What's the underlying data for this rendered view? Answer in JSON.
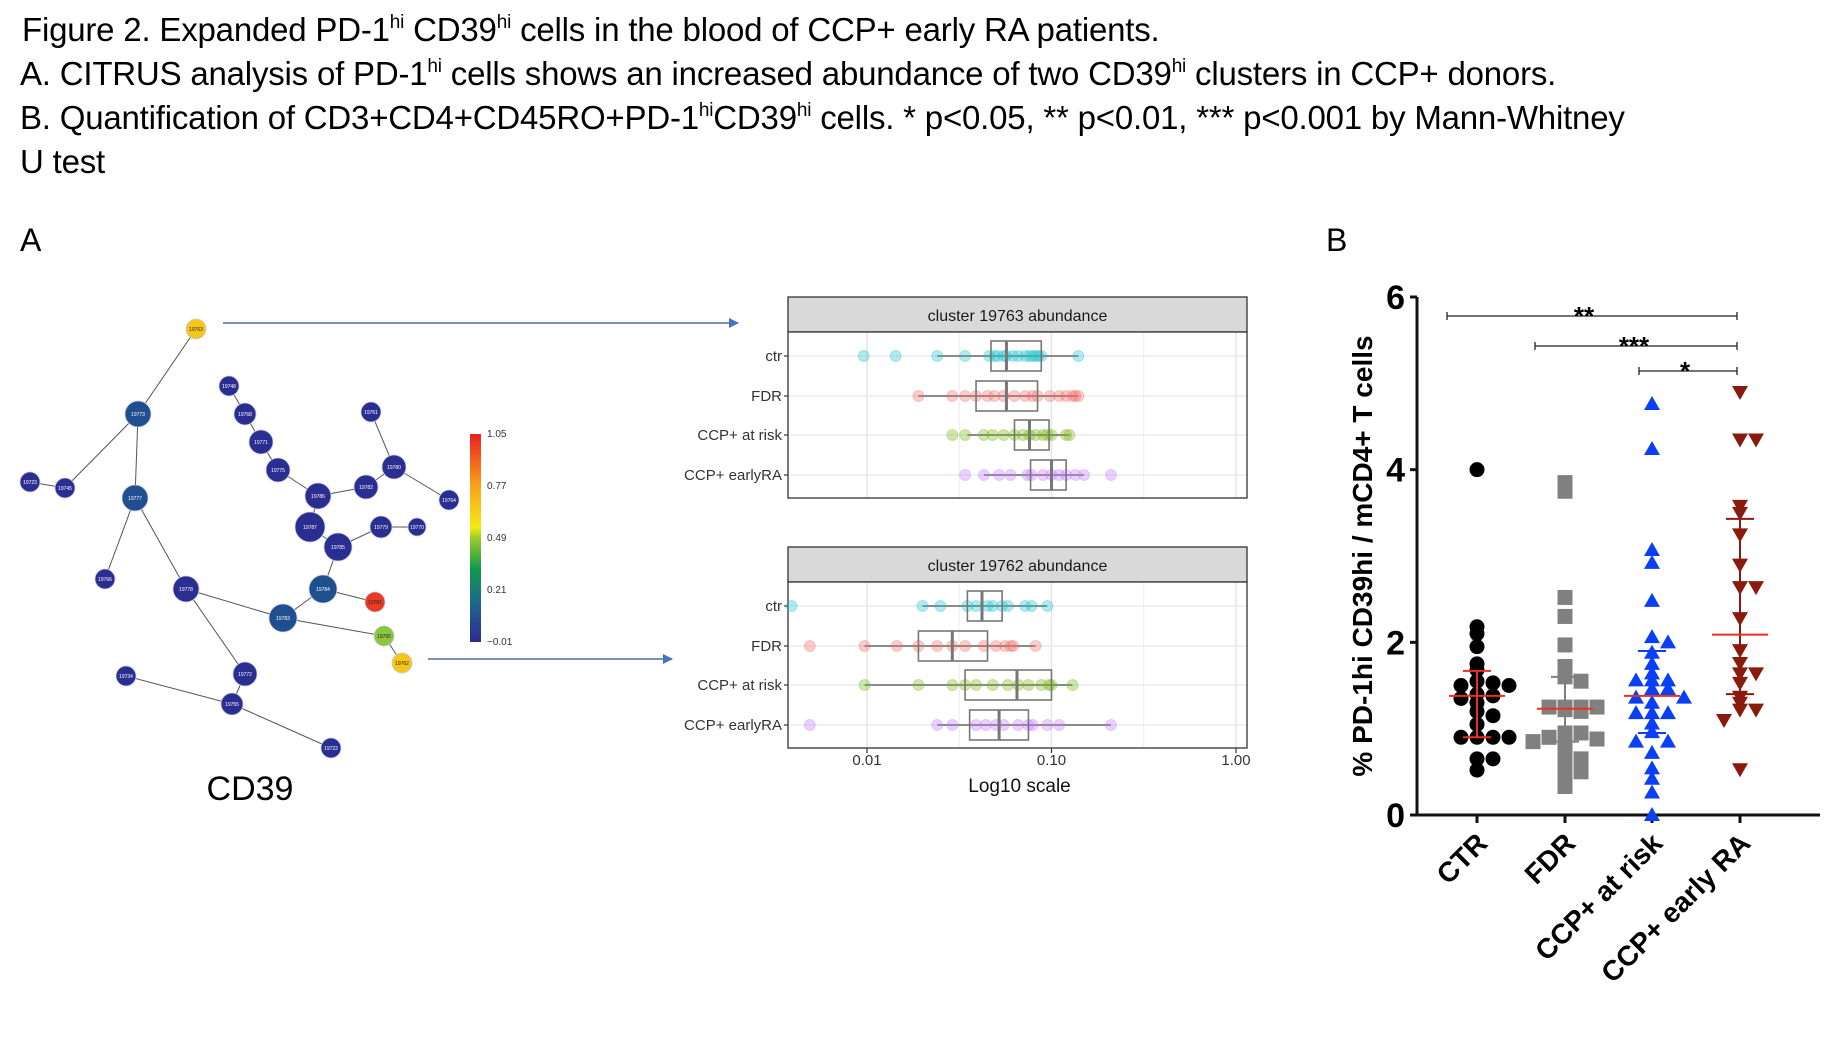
{
  "caption": {
    "line1": {
      "pre": "Figure 2. Expanded PD-1",
      "sup1": "hi",
      "mid": " CD39",
      "sup2": "hi",
      "post": " cells in the blood of CCP+ early RA patients."
    },
    "line2": {
      "pre": "A. CITRUS analysis of PD-1",
      "sup1": "hi",
      "mid": " cells shows an increased abundance of two CD39",
      "sup2": "hi",
      "post": " clusters in CCP+ donors."
    },
    "line3": {
      "pre": "B. Quantification of CD3+CD4+CD45RO+PD-1",
      "sup1": "hi",
      "mid": "CD39",
      "sup2": "hi",
      "post": " cells. * p<0.05, ** p<0.01, *** p<0.001 by Mann-Whitney"
    },
    "line4": "U test"
  },
  "panel_labels": {
    "a": "A",
    "b": "B"
  },
  "network": {
    "marker_label": "CD39",
    "colorbar": {
      "ticks": [
        "1.05",
        "0.77",
        "0.49",
        "0.21",
        "−0.01"
      ],
      "min": -0.01,
      "max": 1.05
    },
    "nodes": [
      {
        "id": "19763",
        "value": 0.55
      },
      {
        "id": "19773",
        "value": 0.12
      },
      {
        "id": "19723",
        "value": 0.0
      },
      {
        "id": "19745",
        "value": 0.0
      },
      {
        "id": "19777",
        "value": 0.12
      },
      {
        "id": "19766",
        "value": 0.0
      },
      {
        "id": "19778",
        "value": 0.0
      },
      {
        "id": "19734",
        "value": 0.0
      },
      {
        "id": "19772",
        "value": 0.02
      },
      {
        "id": "19755",
        "value": 0.0
      },
      {
        "id": "19722",
        "value": 0.0
      },
      {
        "id": "19783",
        "value": 0.12
      },
      {
        "id": "19784",
        "value": 0.12
      },
      {
        "id": "19781",
        "value": 1.0
      },
      {
        "id": "19765",
        "value": 0.4
      },
      {
        "id": "19762",
        "value": 0.58
      },
      {
        "id": "19748",
        "value": 0.0
      },
      {
        "id": "19768",
        "value": 0.0
      },
      {
        "id": "19771",
        "value": 0.0
      },
      {
        "id": "19775",
        "value": 0.0
      },
      {
        "id": "19786",
        "value": 0.0
      },
      {
        "id": "19787",
        "value": 0.0
      },
      {
        "id": "19785",
        "value": 0.0
      },
      {
        "id": "19782",
        "value": 0.0
      },
      {
        "id": "19780",
        "value": 0.0
      },
      {
        "id": "19761",
        "value": 0.0
      },
      {
        "id": "19764",
        "value": 0.0
      },
      {
        "id": "19779",
        "value": 0.0
      },
      {
        "id": "19770",
        "value": 0.0
      }
    ],
    "edges": [
      [
        "19773",
        "19763"
      ],
      [
        "19773",
        "19745"
      ],
      [
        "19745",
        "19723"
      ],
      [
        "19773",
        "19777"
      ],
      [
        "19777",
        "19766"
      ],
      [
        "19777",
        "19778"
      ],
      [
        "19778",
        "19783"
      ],
      [
        "19778",
        "19772"
      ],
      [
        "19772",
        "19755"
      ],
      [
        "19755",
        "19734"
      ],
      [
        "19755",
        "19722"
      ],
      [
        "19783",
        "19784"
      ],
      [
        "19783",
        "19765"
      ],
      [
        "19765",
        "19762"
      ],
      [
        "19784",
        "19781"
      ],
      [
        "19784",
        "19785"
      ],
      [
        "19785",
        "19787"
      ],
      [
        "19787",
        "19786"
      ],
      [
        "19786",
        "19775"
      ],
      [
        "19775",
        "19771"
      ],
      [
        "19771",
        "19768"
      ],
      [
        "19768",
        "19748"
      ],
      [
        "19786",
        "19782"
      ],
      [
        "19782",
        "19780"
      ],
      [
        "19780",
        "19761"
      ],
      [
        "19780",
        "19764"
      ],
      [
        "19785",
        "19779"
      ],
      [
        "19779",
        "19770"
      ]
    ]
  },
  "chart_data": [
    {
      "type": "box",
      "title": "cluster 19763 abundance",
      "xlabel": "Log10 scale",
      "xscale": "log10",
      "xlim": [
        0.0037,
        1.15
      ],
      "xticks": [
        0.01,
        0.1,
        1.0
      ],
      "xtick_labels": [
        "0.01",
        "0.10",
        "1.00"
      ],
      "categories": [
        "ctr",
        "FDR",
        "CCP+ at risk",
        "CCP+ earlyRA"
      ],
      "colors": [
        "#22c3cc",
        "#f0706a",
        "#7cb518",
        "#c77cff"
      ],
      "series": [
        {
          "name": "ctr",
          "points": [
            0.0096,
            0.0143,
            0.024,
            0.034,
            0.046,
            0.049,
            0.051,
            0.055,
            0.057,
            0.062,
            0.066,
            0.072,
            0.076,
            0.079,
            0.082,
            0.085,
            0.088,
            0.14
          ],
          "q1": 0.047,
          "median": 0.057,
          "q3": 0.088,
          "whisker_low": 0.024,
          "whisker_high": 0.14
        },
        {
          "name": "FDR",
          "points": [
            0.019,
            0.029,
            0.034,
            0.039,
            0.045,
            0.049,
            0.055,
            0.063,
            0.072,
            0.079,
            0.084,
            0.098,
            0.11,
            0.12,
            0.13,
            0.135,
            0.14
          ],
          "q1": 0.039,
          "median": 0.057,
          "q3": 0.084,
          "whisker_low": 0.019,
          "whisker_high": 0.14
        },
        {
          "name": "CCP+ at risk",
          "points": [
            0.029,
            0.034,
            0.043,
            0.048,
            0.055,
            0.063,
            0.07,
            0.076,
            0.082,
            0.09,
            0.095,
            0.1,
            0.12,
            0.125
          ],
          "q1": 0.063,
          "median": 0.076,
          "q3": 0.097,
          "whisker_low": 0.035,
          "whisker_high": 0.125
        },
        {
          "name": "CCP+ earlyRA",
          "points": [
            0.034,
            0.043,
            0.052,
            0.06,
            0.074,
            0.078,
            0.09,
            0.1,
            0.11,
            0.12,
            0.135,
            0.15,
            0.21
          ],
          "q1": 0.077,
          "median": 0.1,
          "q3": 0.12,
          "whisker_low": 0.043,
          "whisker_high": 0.15
        }
      ]
    },
    {
      "type": "box",
      "title": "cluster 19762 abundance",
      "xlabel": "Log10 scale",
      "xscale": "log10",
      "xlim": [
        0.0037,
        1.15
      ],
      "xticks": [
        0.01,
        0.1,
        1.0
      ],
      "xtick_labels": [
        "0.01",
        "0.10",
        "1.00"
      ],
      "categories": [
        "ctr",
        "FDR",
        "CCP+ at risk",
        "CCP+ earlyRA"
      ],
      "colors": [
        "#22c3cc",
        "#f0706a",
        "#7cb518",
        "#c77cff"
      ],
      "series": [
        {
          "name": "ctr",
          "points": [
            0.0039,
            0.02,
            0.025,
            0.035,
            0.039,
            0.045,
            0.048,
            0.054,
            0.058,
            0.072,
            0.078,
            0.095
          ],
          "q1": 0.035,
          "median": 0.042,
          "q3": 0.054,
          "whisker_low": 0.02,
          "whisker_high": 0.095
        },
        {
          "name": "FDR",
          "points": [
            0.0049,
            0.0097,
            0.0145,
            0.019,
            0.024,
            0.029,
            0.034,
            0.043,
            0.05,
            0.056,
            0.06,
            0.062,
            0.082
          ],
          "q1": 0.019,
          "median": 0.029,
          "q3": 0.045,
          "whisker_low": 0.0097,
          "whisker_high": 0.082
        },
        {
          "name": "CCP+ at risk",
          "points": [
            0.0097,
            0.019,
            0.029,
            0.034,
            0.039,
            0.048,
            0.058,
            0.066,
            0.075,
            0.088,
            0.097,
            0.1,
            0.13
          ],
          "q1": 0.034,
          "median": 0.065,
          "q3": 0.1,
          "whisker_low": 0.0097,
          "whisker_high": 0.13
        },
        {
          "name": "CCP+ earlyRA",
          "points": [
            0.0049,
            0.024,
            0.029,
            0.039,
            0.044,
            0.05,
            0.055,
            0.066,
            0.075,
            0.079,
            0.095,
            0.11,
            0.21
          ],
          "q1": 0.036,
          "median": 0.052,
          "q3": 0.075,
          "whisker_low": 0.024,
          "whisker_high": 0.21
        }
      ]
    },
    {
      "type": "scatter",
      "title": "",
      "ylabel": "% PD-1hi CD39hi / mCD4+ T cells",
      "ylim": [
        0,
        6
      ],
      "yticks": [
        0,
        2,
        4,
        6
      ],
      "categories": [
        "CTR",
        "FDR",
        "CCP+ at risk",
        "CCP+ early RA"
      ],
      "series": [
        {
          "name": "CTR",
          "marker": "circle",
          "color": "#000000",
          "values": [
            4.0,
            2.18,
            2.1,
            1.95,
            1.75,
            1.68,
            1.55,
            1.53,
            1.5,
            1.5,
            1.4,
            1.38,
            1.35,
            1.3,
            1.2,
            1.15,
            1.05,
            0.9,
            0.9,
            0.9,
            0.9,
            0.65,
            0.65,
            0.52
          ],
          "median": 1.38,
          "q1": 0.9,
          "q3": 1.67
        },
        {
          "name": "FDR",
          "marker": "square",
          "color": "#808080",
          "values": [
            3.85,
            3.75,
            2.52,
            2.3,
            1.97,
            1.72,
            1.6,
            1.55,
            1.25,
            1.25,
            1.25,
            1.25,
            1.22,
            1.2,
            0.95,
            0.95,
            0.9,
            0.88,
            0.85,
            0.8,
            0.7,
            0.65,
            0.55,
            0.5,
            0.45,
            0.33
          ],
          "median": 1.23,
          "q1": 0.85,
          "q3": 1.6
        },
        {
          "name": "CCP+ at risk",
          "marker": "triangle-up",
          "color": "#0b3ff5",
          "values": [
            4.76,
            4.24,
            3.07,
            2.92,
            2.48,
            2.06,
            2.0,
            1.88,
            1.75,
            1.64,
            1.56,
            1.56,
            1.56,
            1.46,
            1.46,
            1.36,
            1.36,
            1.3,
            1.18,
            1.18,
            1.18,
            1.06,
            0.96,
            0.85,
            0.85,
            0.72,
            0.54,
            0.42,
            0.26,
            0.0
          ],
          "median": 1.38,
          "q1": 0.95,
          "q3": 1.9
        },
        {
          "name": "CCP+ early RA",
          "marker": "triangle-down",
          "color": "#8b1a0e",
          "values": [
            4.9,
            4.35,
            4.35,
            3.58,
            3.5,
            3.25,
            2.9,
            2.64,
            2.64,
            2.28,
            1.91,
            1.76,
            1.64,
            1.64,
            1.53,
            1.37,
            1.3,
            1.22,
            1.22,
            1.1,
            0.53
          ],
          "median": 2.09,
          "q1": 1.4,
          "q3": 3.43
        }
      ],
      "significance": [
        {
          "from": "CTR",
          "to": "CCP+ early RA",
          "label": "**"
        },
        {
          "from": "FDR",
          "to": "CCP+ early RA",
          "label": "***"
        },
        {
          "from": "CCP+ at risk",
          "to": "CCP+ early RA",
          "label": "*"
        }
      ]
    }
  ]
}
